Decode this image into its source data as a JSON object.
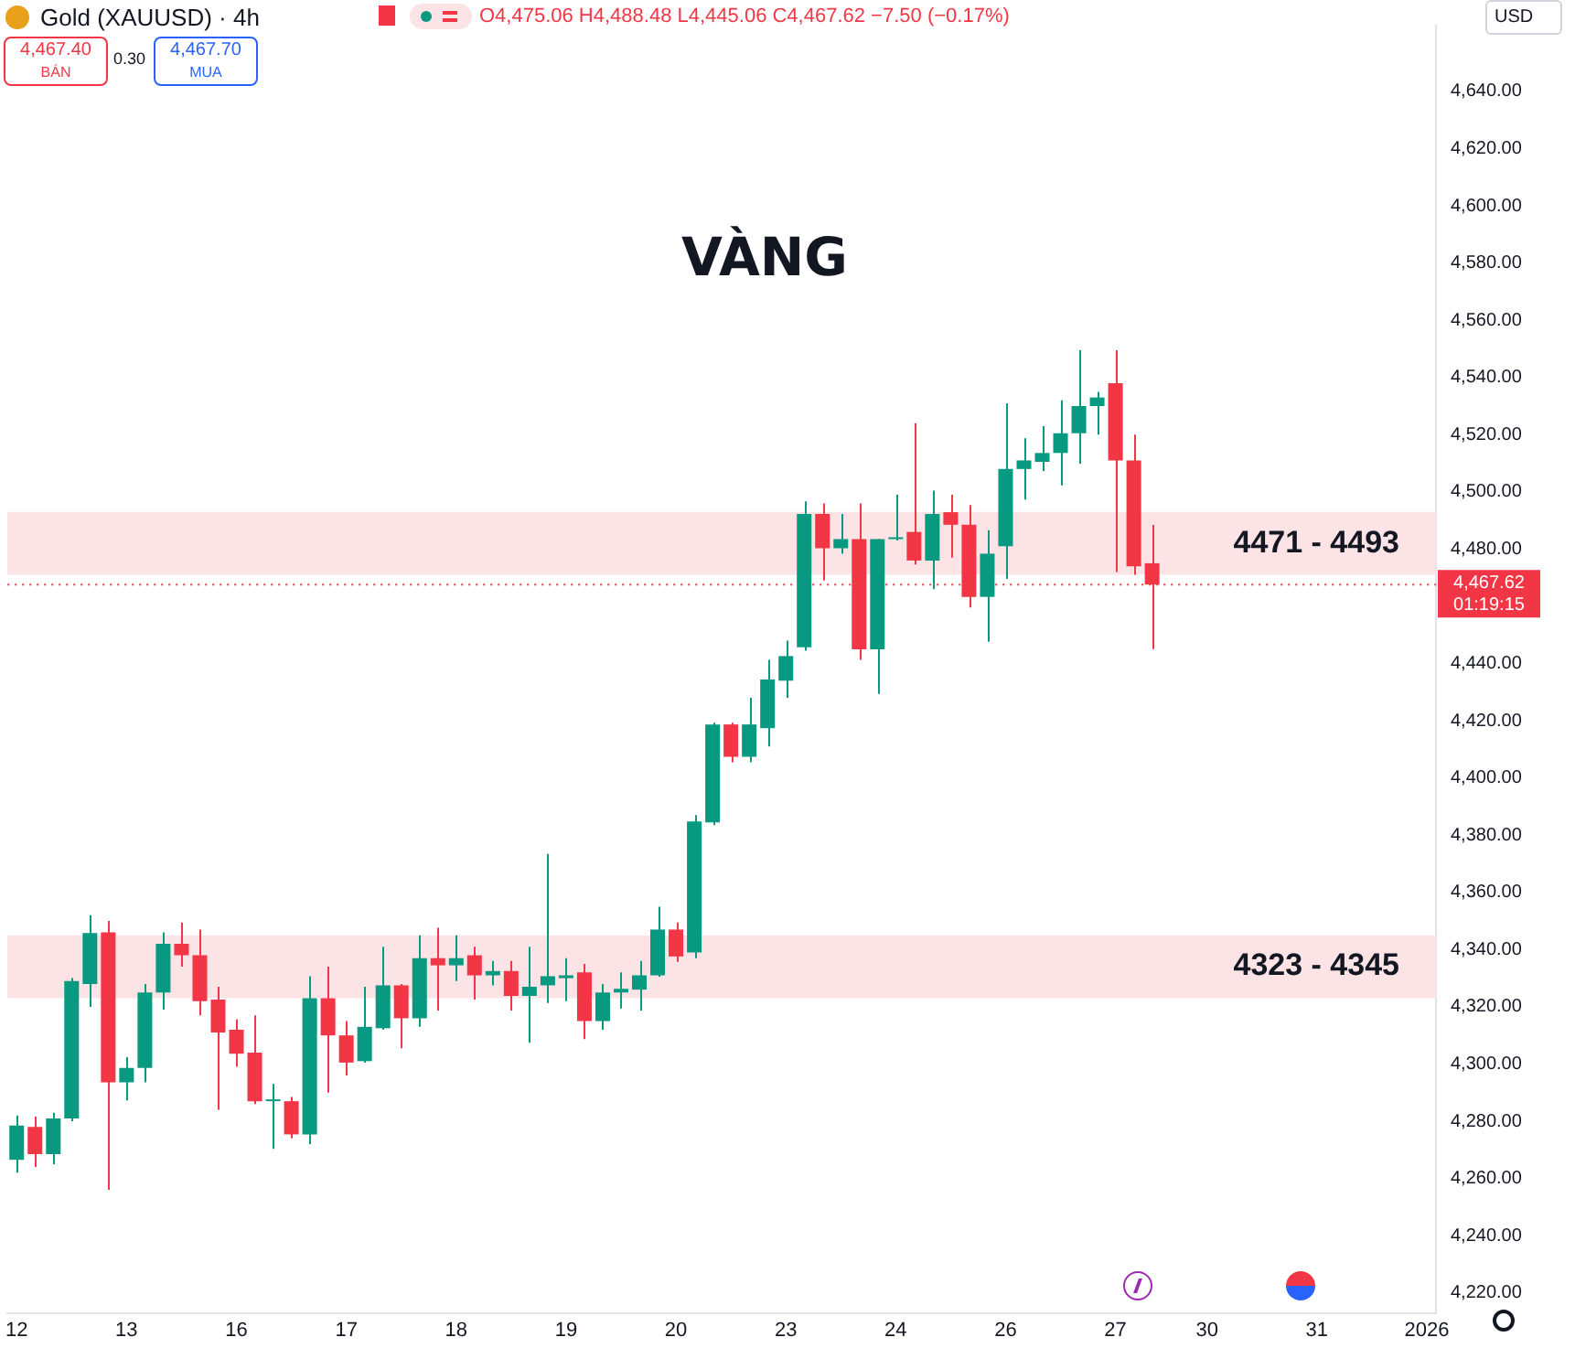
{
  "chart_data": {
    "type": "candlestick",
    "title": "VÀNG",
    "subtitle": "Gold (XAUUSD) · 4h",
    "annotations": [
      "O4,475.06 H4,488.48 L4,445.06 C4,467.62 −7.50 (−0.17%)",
      "4,467.40",
      "BÁN",
      "0.30",
      "4,467.70",
      "MUA",
      "USD",
      "01:19:15"
    ],
    "categories": [
      "12",
      null,
      null,
      null,
      null,
      null,
      "13",
      null,
      null,
      null,
      null,
      null,
      "16",
      null,
      null,
      null,
      null,
      null,
      "17",
      null,
      null,
      null,
      null,
      null,
      "18",
      null,
      null,
      null,
      null,
      null,
      "19",
      null,
      null,
      null,
      null,
      null,
      "20",
      null,
      null,
      null,
      null,
      null,
      "23",
      null,
      null,
      null,
      null,
      null,
      "24",
      null,
      null,
      null,
      null,
      null,
      "26",
      null,
      null,
      null,
      null,
      null,
      "27",
      null,
      null,
      null,
      null,
      "30",
      null,
      null,
      null,
      null,
      null,
      "31",
      null,
      null,
      null,
      null,
      null,
      "2026"
    ],
    "ohlc": [
      [
        4266.5,
        4282,
        4262,
        4278.5
      ],
      [
        4278,
        4281.6,
        4264,
        4268.5
      ],
      [
        4268.5,
        4283,
        4265,
        4281
      ],
      [
        4281,
        4330,
        4280,
        4329
      ],
      [
        4328,
        4352,
        4320,
        4345.8
      ],
      [
        4346,
        4350,
        4256,
        4293.6
      ],
      [
        4293.6,
        4302.4,
        4287.3,
        4298.6
      ],
      [
        4298.6,
        4328,
        4293.6,
        4325
      ],
      [
        4325,
        4346,
        4319,
        4342
      ],
      [
        4342,
        4349.5,
        4334,
        4338
      ],
      [
        4338,
        4347,
        4317,
        4322
      ],
      [
        4322.5,
        4327,
        4284,
        4311
      ],
      [
        4312,
        4315.6,
        4299,
        4303.6
      ],
      [
        4304,
        4317,
        4286,
        4287
      ],
      [
        4287,
        4293,
        4270.3,
        4287
      ],
      [
        4287,
        4288.5,
        4274,
        4275.4
      ],
      [
        4275.4,
        4330.7,
        4272,
        4323
      ],
      [
        4323,
        4334,
        4290,
        4310
      ],
      [
        4310,
        4315,
        4296,
        4300.5
      ],
      [
        4301,
        4327,
        4300.5,
        4313
      ],
      [
        4312.5,
        4341,
        4312,
        4327.5
      ],
      [
        4327.5,
        4328,
        4305.5,
        4316
      ],
      [
        4316,
        4345,
        4313,
        4337
      ],
      [
        4337,
        4347.6,
        4318.7,
        4334.5
      ],
      [
        4334.5,
        4345,
        4329,
        4337
      ],
      [
        4338,
        4341,
        4322.5,
        4331
      ],
      [
        4331,
        4336,
        4327.5,
        4332.5
      ],
      [
        4332.5,
        4336,
        4318.7,
        4323.8
      ],
      [
        4323.8,
        4341,
        4307.4,
        4327
      ],
      [
        4327.5,
        4373.4,
        4321.3,
        4330.7
      ],
      [
        4330,
        4337,
        4322,
        4331
      ],
      [
        4332,
        4335,
        4308.7,
        4315
      ],
      [
        4315,
        4328,
        4312,
        4325
      ],
      [
        4325,
        4332,
        4319.4,
        4326.3
      ],
      [
        4326,
        4336,
        4318.7,
        4331
      ],
      [
        4331,
        4355,
        4330.5,
        4347
      ],
      [
        4347,
        4349.5,
        4335.7,
        4337.6
      ],
      [
        4339,
        4387,
        4337,
        4384.8
      ],
      [
        4384.5,
        4419.3,
        4383.5,
        4418.7
      ],
      [
        4418.7,
        4419.3,
        4405.5,
        4407.4
      ],
      [
        4407.4,
        4428,
        4405.5,
        4418.7
      ],
      [
        4417.4,
        4441.3,
        4411,
        4434.4
      ],
      [
        4434,
        4448,
        4428,
        4442.6
      ],
      [
        4445.7,
        4496.7,
        4444.5,
        4492.3
      ],
      [
        4492.3,
        4496,
        4469,
        4480.3
      ],
      [
        4480.3,
        4492.3,
        4478.4,
        4483.5
      ],
      [
        4483.5,
        4496,
        4441.3,
        4445
      ],
      [
        4445,
        4483.5,
        4429.4,
        4483.5
      ],
      [
        4483.5,
        4499,
        4483,
        4483.5
      ],
      [
        4486,
        4524,
        4474.6,
        4476
      ],
      [
        4476,
        4500.4,
        4466,
        4492.3
      ],
      [
        4492.9,
        4499,
        4477,
        4488.5
      ],
      [
        4488.5,
        4495.4,
        4459.6,
        4463.3
      ],
      [
        4463.3,
        4486.6,
        4447.6,
        4478.4
      ],
      [
        4481,
        4531,
        4469.6,
        4508
      ],
      [
        4508,
        4518.7,
        4497.3,
        4511
      ],
      [
        4510.5,
        4523,
        4507.3,
        4513.6
      ],
      [
        4513.6,
        4532,
        4502.3,
        4520.5
      ],
      [
        4520.5,
        4549.5,
        4509.9,
        4530
      ],
      [
        4530,
        4535,
        4520,
        4533
      ],
      [
        4538,
        4549.5,
        4472,
        4511
      ],
      [
        4511,
        4520,
        4471,
        4474
      ],
      [
        4475.06,
        4488.48,
        4445.06,
        4467.62
      ],
      null,
      null,
      null,
      null,
      null,
      null,
      null,
      null,
      null,
      null,
      null,
      null,
      null,
      null,
      null
    ],
    "colors": [
      "#089981",
      "#f23645",
      "#089981",
      "#089981",
      "#089981",
      "#f23645",
      "#089981",
      "#089981",
      "#089981",
      "#f23645",
      "#f23645",
      "#f23645",
      "#f23645",
      "#f23645",
      "#089981",
      "#f23645",
      "#089981",
      "#f23645",
      "#f23645",
      "#089981",
      "#089981",
      "#f23645",
      "#089981",
      "#f23645",
      "#089981",
      "#f23645",
      "#089981",
      "#f23645",
      "#089981",
      "#089981",
      "#089981",
      "#f23645",
      "#089981",
      "#089981",
      "#089981",
      "#089981",
      "#f23645",
      "#089981",
      "#089981",
      "#f23645",
      "#089981",
      "#089981",
      "#089981",
      "#089981",
      "#f23645",
      "#089981",
      "#f23645",
      "#089981",
      "#089981",
      "#f23645",
      "#089981",
      "#f23645",
      "#f23645",
      "#089981",
      "#089981",
      "#089981",
      "#089981",
      "#089981",
      "#089981",
      "#089981",
      "#f23645",
      "#f23645",
      "#f23645",
      null,
      null,
      null,
      null,
      null,
      null,
      null,
      null,
      null,
      null,
      null,
      null,
      null,
      null,
      null
    ],
    "ylim": [
      4213,
      4663
    ],
    "yticks": [
      {
        "value": 4220,
        "label": "4,220.00"
      },
      {
        "value": 4240,
        "label": "4,240.00"
      },
      {
        "value": 4260,
        "label": "4,260.00"
      },
      {
        "value": 4280,
        "label": "4,280.00"
      },
      {
        "value": 4300,
        "label": "4,300.00"
      },
      {
        "value": 4320,
        "label": "4,320.00"
      },
      {
        "value": 4340,
        "label": "4,340.00"
      },
      {
        "value": 4360,
        "label": "4,360.00"
      },
      {
        "value": 4380,
        "label": "4,380.00"
      },
      {
        "value": 4400,
        "label": "4,400.00"
      },
      {
        "value": 4420,
        "label": "4,420.00"
      },
      {
        "value": 4440,
        "label": "4,440.00"
      },
      {
        "value": 4480,
        "label": "4,480.00"
      },
      {
        "value": 4500,
        "label": "4,500.00"
      },
      {
        "value": 4520,
        "label": "4,520.00"
      },
      {
        "value": 4540,
        "label": "4,540.00"
      },
      {
        "value": 4560,
        "label": "4,560.00"
      },
      {
        "value": 4580,
        "label": "4,580.00"
      },
      {
        "value": 4600,
        "label": "4,600.00"
      },
      {
        "value": 4620,
        "label": "4,620.00"
      },
      {
        "value": 4640,
        "label": "4,640.00"
      }
    ],
    "bands": [
      {
        "axis": "y",
        "from": 4471,
        "to": 4493,
        "label": "4471 - 4493",
        "color": "#fce3e5"
      },
      {
        "axis": "y",
        "from": 4323,
        "to": 4345,
        "label": "4323 - 4345",
        "color": "#fce3e5"
      }
    ],
    "ref_lines": [
      {
        "axis": "y",
        "value": 4467.62,
        "label": "4,467.62",
        "color": "#f23645",
        "line_style": "dotted"
      }
    ],
    "grid": false,
    "legend": false
  }
}
